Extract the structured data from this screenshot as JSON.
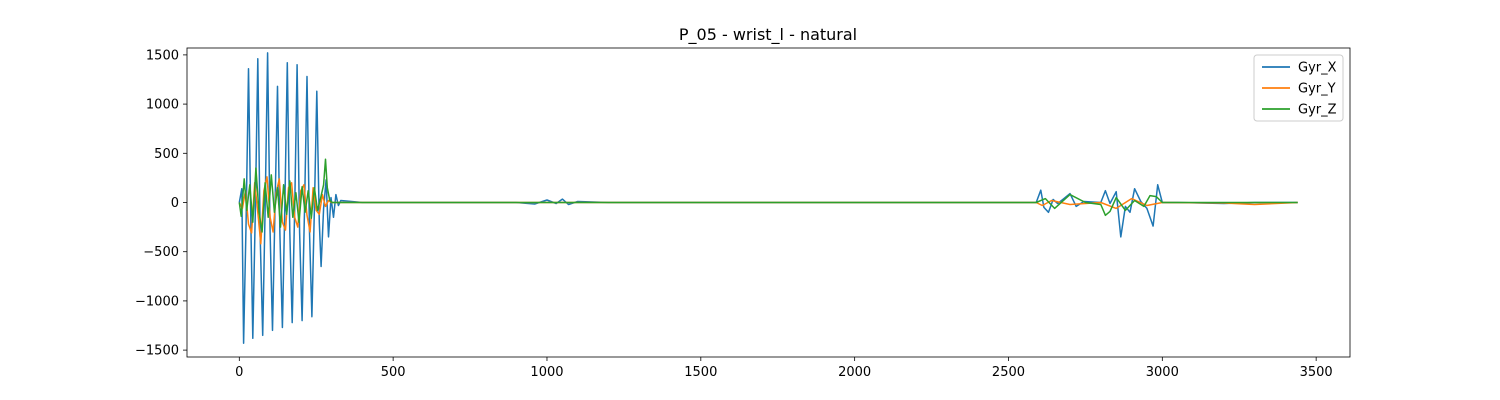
{
  "chart_data": {
    "type": "line",
    "title": "P_05 - wrist_l - natural",
    "xlabel": "",
    "ylabel": "",
    "xlim": [
      -170,
      3610
    ],
    "ylim": [
      -1570,
      1570
    ],
    "xticks": [
      0,
      500,
      1000,
      1500,
      2000,
      2500,
      3000,
      3500
    ],
    "yticks": [
      -1500,
      -1000,
      -500,
      0,
      500,
      1000,
      1500
    ],
    "legend_position": "top-right",
    "grid": false,
    "series": [
      {
        "name": "Gyr_X",
        "color": "#1f77b4",
        "points": [
          [
            0,
            0
          ],
          [
            8,
            140
          ],
          [
            14,
            -1430
          ],
          [
            22,
            -200
          ],
          [
            30,
            1360
          ],
          [
            38,
            -300
          ],
          [
            44,
            -1380
          ],
          [
            52,
            -100
          ],
          [
            60,
            1460
          ],
          [
            68,
            -350
          ],
          [
            76,
            -1350
          ],
          [
            84,
            -80
          ],
          [
            92,
            1520
          ],
          [
            100,
            -300
          ],
          [
            108,
            -1300
          ],
          [
            116,
            -60
          ],
          [
            124,
            1180
          ],
          [
            132,
            -320
          ],
          [
            140,
            -1270
          ],
          [
            148,
            -60
          ],
          [
            156,
            1420
          ],
          [
            164,
            -300
          ],
          [
            172,
            -1220
          ],
          [
            180,
            -60
          ],
          [
            188,
            1400
          ],
          [
            196,
            -300
          ],
          [
            204,
            -1200
          ],
          [
            212,
            -80
          ],
          [
            220,
            1280
          ],
          [
            228,
            -300
          ],
          [
            236,
            -1160
          ],
          [
            244,
            -60
          ],
          [
            252,
            1130
          ],
          [
            260,
            -200
          ],
          [
            266,
            -650
          ],
          [
            274,
            -60
          ],
          [
            282,
            230
          ],
          [
            290,
            -350
          ],
          [
            298,
            50
          ],
          [
            306,
            -150
          ],
          [
            314,
            80
          ],
          [
            322,
            -30
          ],
          [
            330,
            20
          ],
          [
            400,
            0
          ],
          [
            900,
            0
          ],
          [
            960,
            -15
          ],
          [
            1000,
            25
          ],
          [
            1030,
            -10
          ],
          [
            1050,
            35
          ],
          [
            1070,
            -20
          ],
          [
            1100,
            10
          ],
          [
            1200,
            0
          ],
          [
            1500,
            0
          ],
          [
            2000,
            0
          ],
          [
            2550,
            0
          ],
          [
            2590,
            0
          ],
          [
            2605,
            125
          ],
          [
            2615,
            -50
          ],
          [
            2630,
            -100
          ],
          [
            2645,
            30
          ],
          [
            2660,
            -10
          ],
          [
            2680,
            40
          ],
          [
            2700,
            90
          ],
          [
            2720,
            -40
          ],
          [
            2745,
            10
          ],
          [
            2800,
            0
          ],
          [
            2815,
            120
          ],
          [
            2830,
            -10
          ],
          [
            2850,
            110
          ],
          [
            2865,
            -350
          ],
          [
            2880,
            -40
          ],
          [
            2895,
            -100
          ],
          [
            2910,
            140
          ],
          [
            2930,
            10
          ],
          [
            2950,
            -60
          ],
          [
            2970,
            -240
          ],
          [
            2985,
            180
          ],
          [
            3000,
            0
          ],
          [
            3050,
            0
          ],
          [
            3200,
            -10
          ],
          [
            3300,
            0
          ],
          [
            3440,
            0
          ]
        ]
      },
      {
        "name": "Gyr_Y",
        "color": "#ff7f0e",
        "points": [
          [
            0,
            0
          ],
          [
            10,
            -60
          ],
          [
            20,
            120
          ],
          [
            30,
            -220
          ],
          [
            40,
            -310
          ],
          [
            50,
            200
          ],
          [
            60,
            -100
          ],
          [
            70,
            -420
          ],
          [
            80,
            120
          ],
          [
            90,
            260
          ],
          [
            100,
            -150
          ],
          [
            110,
            -300
          ],
          [
            120,
            100
          ],
          [
            130,
            240
          ],
          [
            140,
            -200
          ],
          [
            150,
            -280
          ],
          [
            160,
            150
          ],
          [
            170,
            200
          ],
          [
            180,
            -150
          ],
          [
            190,
            -250
          ],
          [
            200,
            120
          ],
          [
            210,
            180
          ],
          [
            220,
            -130
          ],
          [
            230,
            -300
          ],
          [
            240,
            150
          ],
          [
            250,
            -80
          ],
          [
            260,
            -120
          ],
          [
            270,
            80
          ],
          [
            280,
            -40
          ],
          [
            290,
            20
          ],
          [
            300,
            0
          ],
          [
            1000,
            0
          ],
          [
            2590,
            0
          ],
          [
            2610,
            -30
          ],
          [
            2640,
            20
          ],
          [
            2700,
            -20
          ],
          [
            2800,
            0
          ],
          [
            2850,
            -60
          ],
          [
            2900,
            40
          ],
          [
            2950,
            -30
          ],
          [
            3000,
            0
          ],
          [
            3200,
            -5
          ],
          [
            3300,
            -20
          ],
          [
            3440,
            0
          ]
        ]
      },
      {
        "name": "Gyr_Z",
        "color": "#2ca02c",
        "points": [
          [
            0,
            0
          ],
          [
            6,
            -140
          ],
          [
            16,
            240
          ],
          [
            24,
            -80
          ],
          [
            34,
            180
          ],
          [
            44,
            -200
          ],
          [
            54,
            350
          ],
          [
            64,
            -100
          ],
          [
            74,
            -300
          ],
          [
            84,
            200
          ],
          [
            94,
            -150
          ],
          [
            104,
            280
          ],
          [
            114,
            -100
          ],
          [
            124,
            150
          ],
          [
            134,
            -250
          ],
          [
            144,
            180
          ],
          [
            154,
            -120
          ],
          [
            164,
            220
          ],
          [
            174,
            -150
          ],
          [
            184,
            100
          ],
          [
            194,
            -200
          ],
          [
            204,
            160
          ],
          [
            214,
            -100
          ],
          [
            224,
            120
          ],
          [
            234,
            -160
          ],
          [
            244,
            150
          ],
          [
            254,
            -80
          ],
          [
            264,
            40
          ],
          [
            274,
            180
          ],
          [
            280,
            440
          ],
          [
            286,
            150
          ],
          [
            294,
            20
          ],
          [
            302,
            0
          ],
          [
            1000,
            0
          ],
          [
            2590,
            0
          ],
          [
            2620,
            40
          ],
          [
            2650,
            -60
          ],
          [
            2700,
            80
          ],
          [
            2750,
            0
          ],
          [
            2800,
            -20
          ],
          [
            2815,
            -130
          ],
          [
            2830,
            -90
          ],
          [
            2850,
            50
          ],
          [
            2880,
            -80
          ],
          [
            2910,
            20
          ],
          [
            2940,
            -40
          ],
          [
            2960,
            70
          ],
          [
            2980,
            60
          ],
          [
            3000,
            0
          ],
          [
            3440,
            0
          ]
        ]
      }
    ]
  }
}
